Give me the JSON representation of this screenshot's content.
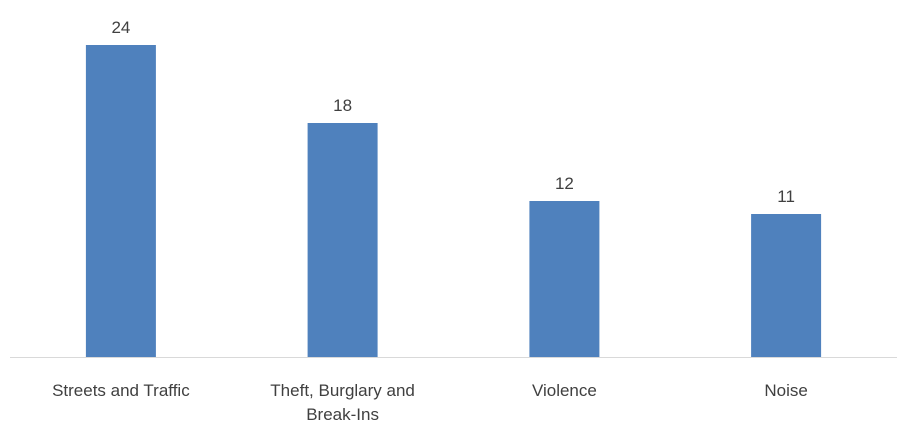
{
  "chart_data": {
    "type": "bar",
    "categories": [
      [
        "Streets and Traffic"
      ],
      [
        "Theft, Burglary and",
        "Break-Ins"
      ],
      [
        "Violence"
      ],
      [
        "Noise"
      ]
    ],
    "values": [
      24,
      18,
      12,
      11
    ],
    "data_labels": [
      "24",
      "18",
      "12",
      "11"
    ],
    "title": "",
    "xlabel": "",
    "ylabel": "",
    "ylim": [
      0,
      24
    ],
    "grid": false,
    "legend": "none",
    "bar_color": "#4f81bd",
    "axis_color": "#d9d9d9",
    "text_color": "#404040"
  }
}
